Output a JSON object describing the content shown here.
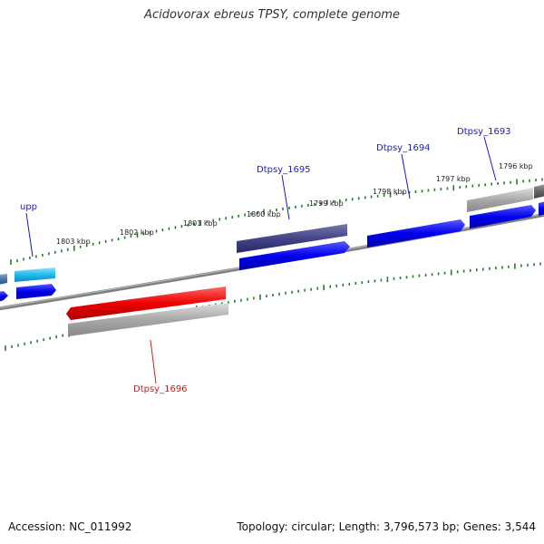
{
  "title": "Acidovorax ebreus TPSY, complete genome",
  "footer": {
    "accession": "Accession: NC_011992",
    "topology": "Topology: circular; Length: 3,796,573 bp; Genes: 3,544"
  },
  "tick_labels": [
    "1803 kbp",
    "1802 kbp",
    "1801 kbp",
    "1800 kbp",
    "1799 kbp",
    "1798 kbp",
    "1797 kbp",
    "1796 kbp"
  ],
  "gene_labels": [
    {
      "name": "upp",
      "color": "#1a1acc"
    },
    {
      "name": "Dtpsy_1695",
      "color": "#1a1acc"
    },
    {
      "name": "Dtpsy_1694",
      "color": "#1a1acc"
    },
    {
      "name": "Dtpsy_1693",
      "color": "#1a1acc"
    },
    {
      "name": "Dtpsy_1696",
      "color": "#cc1a1a"
    }
  ],
  "colors": {
    "backbone": "#808080",
    "cds_blue": "#0000ee",
    "cds_cyan": "#22bbee",
    "cds_dark": "#444488",
    "cds_red": "#ee0000",
    "cds_grey": "#a8a8a8",
    "tick_green": "#2a7a2a"
  }
}
